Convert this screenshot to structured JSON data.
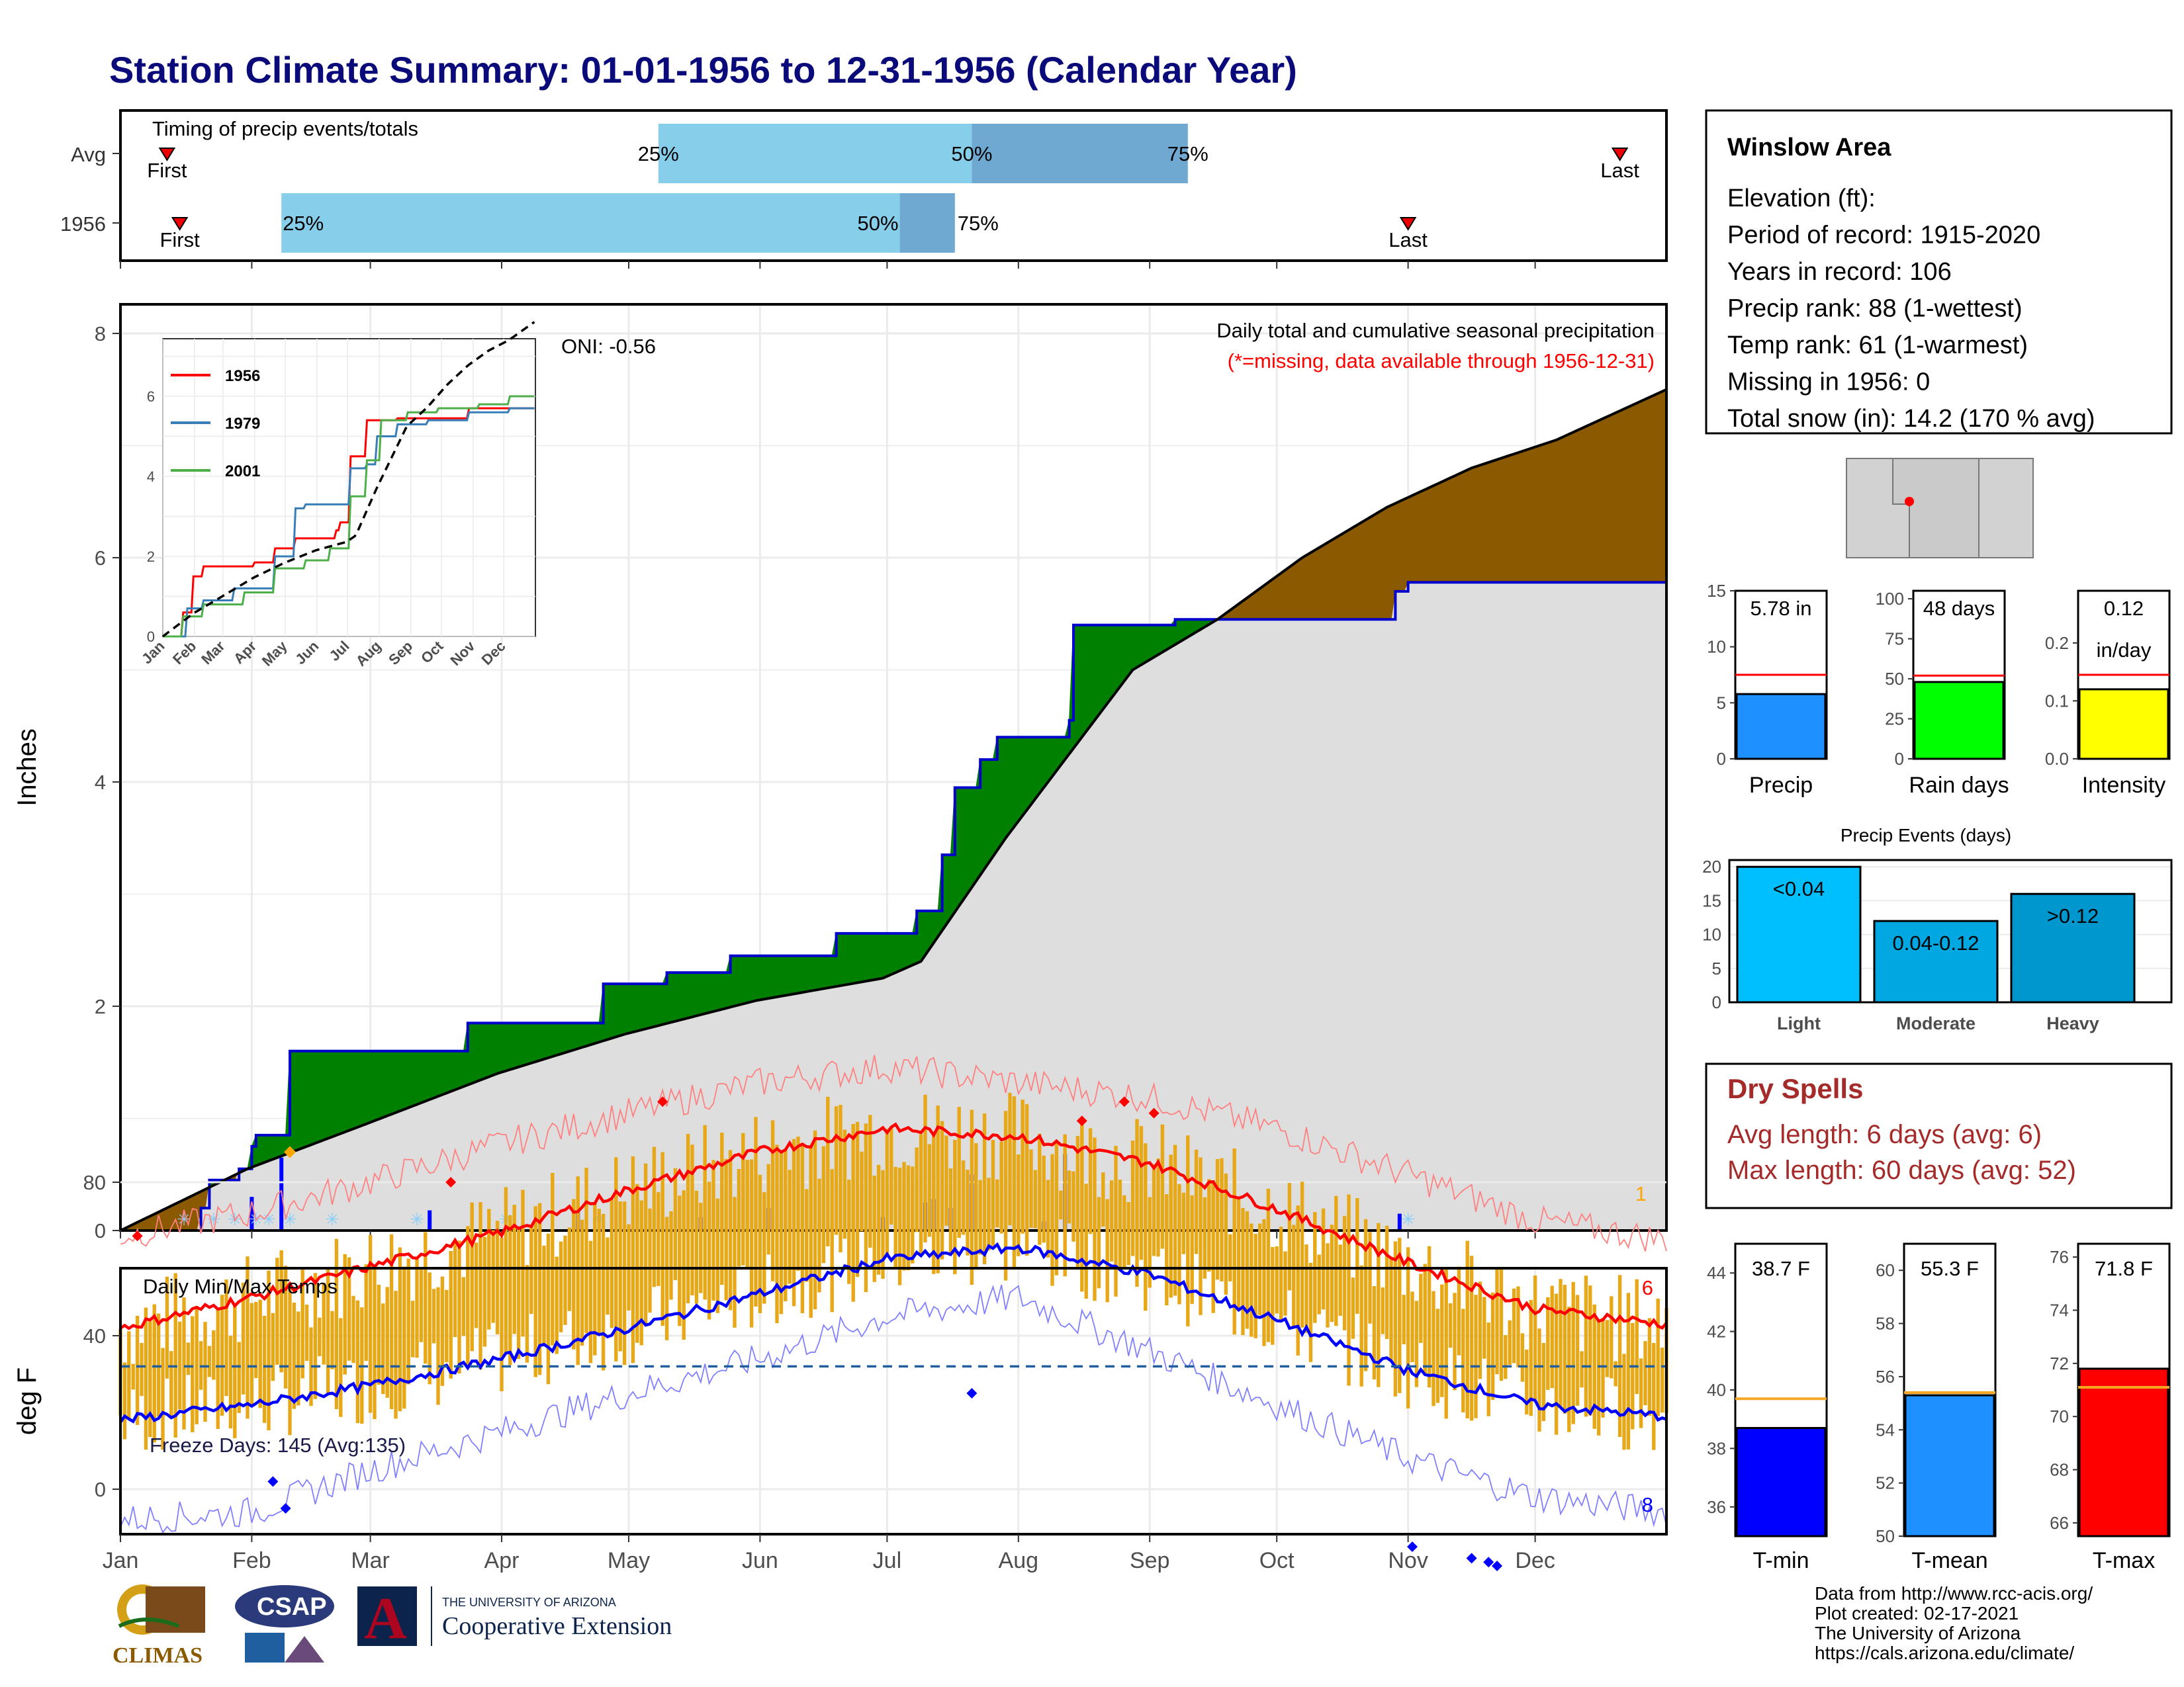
{
  "title": "Station Climate Summary: 01-01-1956 to 12-31-1956 (Calendar Year)",
  "colors": {
    "title": "#0a0a7a",
    "q1": "#87ceeb",
    "q2": "#6fa8d0",
    "green": "#008000",
    "brown": "#8b5a00",
    "cumline": "#0000cd",
    "light": "#dedede",
    "bar": "#0000ff",
    "snow": "#87cefa",
    "red": "#ff0000",
    "blue": "#0000ff",
    "orange": "#e6a817",
    "dryred": "#a52a2a"
  },
  "timing": {
    "label": "Timing of precip events/totals",
    "rows": [
      {
        "name": "Avg",
        "first_day": 12,
        "last_day": 355,
        "q25": 128,
        "q50": 202,
        "q75": 253,
        "labels": {
          "first": "First",
          "last": "Last",
          "p25": "25%",
          "p50": "50%",
          "p75": "75%"
        }
      },
      {
        "name": "1956",
        "first_day": 15,
        "last_day": 305,
        "q25": 39,
        "q50": 185,
        "q75": 198,
        "labels": {
          "first": "First",
          "last": "Last",
          "p25": "25%",
          "p50": "50%",
          "p75": "75%"
        }
      }
    ]
  },
  "info": {
    "station": "Winslow Area",
    "lines": [
      "Elevation (ft):",
      "Period of record: 1915-2020",
      "Years in record: 106",
      "Precip rank: 88 (1-wettest)",
      "Temp rank: 61 (1-warmest)",
      "Missing in 1956: 0",
      "Total snow (in): 14.2 (170 % avg)"
    ]
  },
  "main_precip": {
    "ylabel": "Inches",
    "yticks": [
      "0",
      "2",
      "4",
      "6",
      "8"
    ],
    "note1": "Daily total and cumulative seasonal precipitation",
    "note2": "(*=missing, data available through 1956-12-31)",
    "oni": "ONI: -0.56",
    "count_label": "1",
    "months": [
      "Jan",
      "Feb",
      "Mar",
      "Apr",
      "May",
      "Jun",
      "Jul",
      "Aug",
      "Sep",
      "Oct",
      "Nov",
      "Dec"
    ]
  },
  "inset": {
    "yticks": [
      "0",
      "2",
      "4",
      "6"
    ],
    "months": [
      "Jan",
      "Feb",
      "Mar",
      "Apr",
      "May",
      "Jun",
      "Jul",
      "Aug",
      "Sep",
      "Oct",
      "Nov",
      "Dec"
    ],
    "legend": [
      "1956",
      "1979",
      "2001"
    ],
    "legend_colors": [
      "#ff0000",
      "#377eb8",
      "#4daf4a"
    ]
  },
  "precip_bars": {
    "items": [
      {
        "label": "Precip",
        "value_text": "5.78 in",
        "yticks": [
          "0",
          "5",
          "10",
          "15"
        ]
      },
      {
        "label": "Rain days",
        "value_text": "48 days",
        "yticks": [
          "0",
          "25",
          "50",
          "75",
          "100"
        ]
      },
      {
        "label": "Intensity",
        "value_text": "0.12",
        "value_text2": "in/day",
        "yticks": [
          "0.0",
          "0.1",
          "0.2"
        ]
      }
    ]
  },
  "events": {
    "title": "Precip Events (days)",
    "yticks": [
      "0",
      "5",
      "10",
      "15",
      "20"
    ],
    "bars": [
      {
        "cat": "Light",
        "label": "<0.04"
      },
      {
        "cat": "Moderate",
        "label": "0.04-0.12"
      },
      {
        "cat": "Heavy",
        "label": ">0.12"
      }
    ]
  },
  "dry": {
    "title": "Dry Spells",
    "line1": "Avg length: 6 days (avg: 6)",
    "line2": "Max length: 60 days (avg: 52)"
  },
  "temps_panel": {
    "title": "Daily Min/Max Temps",
    "ylabel": "deg F",
    "yticks": [
      "0",
      "40",
      "80"
    ],
    "freeze": "Freeze Days: 145 (Avg:135)",
    "count_hi": "6",
    "count_lo": "8",
    "months": [
      "Jan",
      "Feb",
      "Mar",
      "Apr",
      "May",
      "Jun",
      "Jul",
      "Aug",
      "Sep",
      "Oct",
      "Nov",
      "Dec"
    ]
  },
  "temp_bars": {
    "items": [
      {
        "label": "T-min",
        "value_text": "38.7 F",
        "yticks": [
          "36",
          "38",
          "40",
          "42",
          "44"
        ]
      },
      {
        "label": "T-mean",
        "value_text": "55.3 F",
        "yticks": [
          "50",
          "52",
          "54",
          "56",
          "58",
          "60"
        ]
      },
      {
        "label": "T-max",
        "value_text": "71.8 F",
        "yticks": [
          "66",
          "68",
          "70",
          "72",
          "74",
          "76"
        ]
      }
    ]
  },
  "footer": {
    "lines": [
      "Data from http://www.rcc-acis.org/",
      "Plot created: 02-17-2021",
      "The University of Arizona",
      "https://cals.arizona.edu/climate/"
    ],
    "logo_climas": "CLIMAS",
    "logo_csap": "CSAP",
    "logo_ua_top": "THE UNIVERSITY OF ARIZONA",
    "logo_ua_bottom": "Cooperative Extension"
  },
  "chart_data": [
    {
      "type": "bar",
      "title": "Timing of precip events/totals",
      "categories": [
        "Avg",
        "1956"
      ],
      "series": [
        {
          "name": "First",
          "values": [
            12,
            15
          ]
        },
        {
          "name": "25%",
          "values": [
            128,
            39
          ]
        },
        {
          "name": "50%",
          "values": [
            202,
            185
          ]
        },
        {
          "name": "75%",
          "values": [
            253,
            198
          ]
        },
        {
          "name": "Last",
          "values": [
            355,
            305
          ]
        }
      ]
    },
    {
      "type": "area",
      "title": "Daily total and cumulative seasonal precipitation",
      "ylabel": "Inches",
      "xlim": [
        1,
        366
      ],
      "ylim": [
        0,
        8
      ],
      "series": [
        {
          "name": "1956",
          "x": [
            1,
            20,
            22,
            29,
            32,
            33,
            41,
            50,
            60,
            70,
            74,
            83,
            106,
            115,
            130,
            145,
            160,
            170,
            180,
            186,
            189,
            190,
            195,
            198,
            204,
            208,
            225,
            226,
            240,
            250,
            300,
            302,
            305,
            366
          ],
          "y": [
            0,
            0.2,
            0.45,
            0.55,
            0.75,
            0.85,
            1.6,
            1.6,
            1.6,
            1.6,
            1.6,
            1.85,
            1.85,
            2.2,
            2.3,
            2.45,
            2.45,
            2.65,
            2.65,
            2.65,
            2.85,
            2.85,
            3.35,
            3.95,
            4.2,
            4.4,
            4.55,
            5.4,
            5.4,
            5.45,
            5.45,
            5.7,
            5.78,
            5.78
          ]
        },
        {
          "name": "Avg",
          "x": [
            1,
            31,
            59,
            90,
            120,
            151,
            181,
            190,
            210,
            240,
            260,
            280,
            300,
            320,
            340,
            366
          ],
          "y": [
            0,
            0.55,
            0.95,
            1.4,
            1.75,
            2.05,
            2.25,
            2.4,
            3.5,
            5.0,
            5.45,
            6.0,
            6.45,
            6.8,
            7.05,
            7.5
          ]
        }
      ],
      "daily_bars": [
        {
          "x": 32,
          "y": 0.3
        },
        {
          "x": 39,
          "y": 0.65
        },
        {
          "x": 74,
          "y": 0.18
        },
        {
          "x": 109,
          "y": 0.18
        },
        {
          "x": 138,
          "y": 0.12
        },
        {
          "x": 154,
          "y": 0.2
        },
        {
          "x": 181,
          "y": 0.12
        },
        {
          "x": 191,
          "y": 0.25
        },
        {
          "x": 193,
          "y": 0.28
        },
        {
          "x": 197,
          "y": 0.2
        },
        {
          "x": 202,
          "y": 0.5
        },
        {
          "x": 219,
          "y": 0.08
        },
        {
          "x": 224,
          "y": 0.68
        },
        {
          "x": 303,
          "y": 0.15
        }
      ],
      "annotations": [
        "ONI: -0.56"
      ]
    },
    {
      "type": "line",
      "title": "",
      "series": [
        {
          "name": "1956"
        },
        {
          "name": "1979"
        },
        {
          "name": "2001"
        }
      ],
      "ylim": [
        0,
        7
      ]
    },
    {
      "type": "bar",
      "title": "",
      "categories": [
        "Precip",
        "Rain days",
        "Intensity"
      ],
      "series": [
        {
          "name": "1956",
          "values": [
            5.78,
            48,
            0.12
          ]
        },
        {
          "name": "Avg",
          "values": [
            7.5,
            52,
            0.145
          ]
        }
      ]
    },
    {
      "type": "bar",
      "title": "Precip Events (days)",
      "categories": [
        "Light",
        "Moderate",
        "Heavy"
      ],
      "values": [
        20,
        12,
        16
      ],
      "ylim": [
        0,
        21
      ]
    },
    {
      "type": "line",
      "title": "Daily Min/Max Temps",
      "ylabel": "deg F",
      "ylim": [
        -25,
        115
      ],
      "series": [
        {
          "name": "Avg max",
          "x": [
            1,
            32,
            60,
            91,
            121,
            152,
            182,
            213,
            244,
            274,
            305,
            335,
            366
          ],
          "y": [
            42,
            50,
            58,
            67,
            78,
            88,
            94,
            92,
            85,
            73,
            59,
            47,
            43
          ]
        },
        {
          "name": "Avg min",
          "x": [
            1,
            32,
            60,
            91,
            121,
            152,
            182,
            213,
            244,
            274,
            305,
            335,
            366
          ],
          "y": [
            18,
            22,
            27,
            34,
            42,
            51,
            60,
            63,
            56,
            44,
            31,
            22,
            19
          ]
        },
        {
          "name": "Record max",
          "x": [
            1,
            32,
            60,
            91,
            121,
            152,
            182,
            213,
            244,
            274,
            305,
            335,
            366
          ],
          "y": [
            66,
            72,
            80,
            90,
            98,
            106,
            110,
            106,
            102,
            94,
            82,
            70,
            65
          ]
        },
        {
          "name": "Record min",
          "x": [
            1,
            32,
            60,
            91,
            121,
            152,
            182,
            213,
            244,
            274,
            305,
            335,
            366
          ],
          "y": [
            -8,
            -6,
            5,
            15,
            25,
            34,
            45,
            50,
            36,
            22,
            8,
            -2,
            -6
          ]
        }
      ],
      "freeze_line": 32,
      "freeze_days": 145
    },
    {
      "type": "bar",
      "title": "",
      "categories": [
        "T-min",
        "T-mean",
        "T-max"
      ],
      "series": [
        {
          "name": "1956",
          "values": [
            38.7,
            55.3,
            71.8
          ]
        },
        {
          "name": "Avg",
          "values": [
            39.7,
            55.4,
            71.1
          ]
        }
      ]
    }
  ]
}
